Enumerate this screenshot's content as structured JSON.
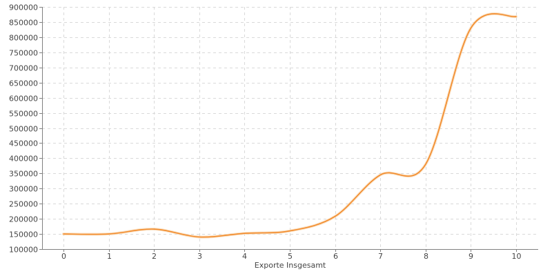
{
  "chart_data": {
    "type": "line",
    "title": "",
    "xlabel": "Exporte Insgesamt",
    "ylabel": "",
    "x": [
      0,
      1,
      2,
      3,
      4,
      5,
      6,
      7,
      8,
      9,
      10
    ],
    "series": [
      {
        "values": [
          150000,
          150000,
          166000,
          140000,
          152000,
          160000,
          208000,
          345000,
          380000,
          830000,
          868000
        ],
        "color": "#f28a2a"
      }
    ],
    "xlim": [
      0,
      10
    ],
    "ylim": [
      100000,
      900000
    ],
    "xticks": [
      "0",
      "1",
      "2",
      "3",
      "4",
      "5",
      "6",
      "7",
      "8",
      "9",
      "10"
    ],
    "yticks": [
      "100000",
      "150000",
      "200000",
      "250000",
      "300000",
      "350000",
      "400000",
      "450000",
      "500000",
      "550000",
      "600000",
      "650000",
      "700000",
      "750000",
      "800000",
      "850000",
      "900000"
    ],
    "grid": true,
    "legend": "none"
  }
}
